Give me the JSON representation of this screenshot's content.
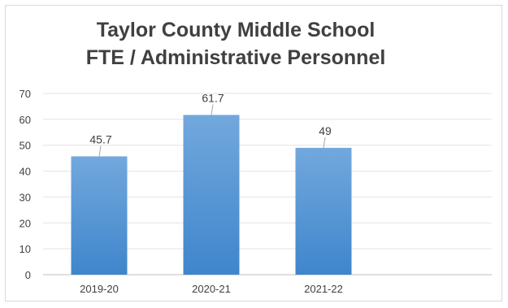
{
  "chart_data": {
    "type": "bar",
    "title": "Taylor County Middle School",
    "subtitle": "FTE / Administrative Personnel",
    "xlabel": "",
    "ylabel": "",
    "categories": [
      "2019-20",
      "2020-21",
      "2021-22",
      ""
    ],
    "values": [
      45.7,
      61.7,
      49,
      null
    ],
    "data_labels": [
      "45.7",
      "61.7",
      "49",
      ""
    ],
    "ylim": [
      0,
      70
    ],
    "yticks": [
      0,
      10,
      20,
      30,
      40,
      50,
      60,
      70
    ],
    "grid": true,
    "legend": "none",
    "bar_color": "#5b9bd5"
  }
}
